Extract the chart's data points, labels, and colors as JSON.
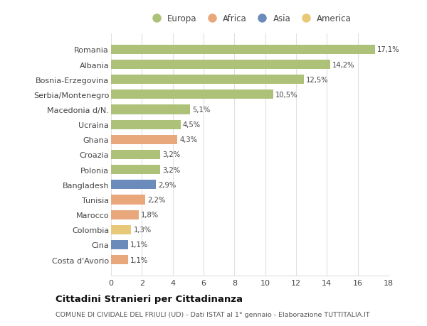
{
  "categories": [
    "Costa d'Avorio",
    "Cina",
    "Colombia",
    "Marocco",
    "Tunisia",
    "Bangladesh",
    "Polonia",
    "Croazia",
    "Ghana",
    "Ucraina",
    "Macedonia d/N.",
    "Serbia/Montenegro",
    "Bosnia-Erzegovina",
    "Albania",
    "Romania"
  ],
  "values": [
    1.1,
    1.1,
    1.3,
    1.8,
    2.2,
    2.9,
    3.2,
    3.2,
    4.3,
    4.5,
    5.1,
    10.5,
    12.5,
    14.2,
    17.1
  ],
  "labels": [
    "1,1%",
    "1,1%",
    "1,3%",
    "1,8%",
    "2,2%",
    "2,9%",
    "3,2%",
    "3,2%",
    "4,3%",
    "4,5%",
    "5,1%",
    "10,5%",
    "12,5%",
    "14,2%",
    "17,1%"
  ],
  "continent": [
    "Africa",
    "Asia",
    "America",
    "Africa",
    "Africa",
    "Asia",
    "Europa",
    "Europa",
    "Africa",
    "Europa",
    "Europa",
    "Europa",
    "Europa",
    "Europa",
    "Europa"
  ],
  "colors": {
    "Europa": "#adc178",
    "Africa": "#e8a87c",
    "Asia": "#6b8cba",
    "America": "#e8c97a"
  },
  "title": "Cittadini Stranieri per Cittadinanza",
  "subtitle": "COMUNE DI CIVIDALE DEL FRIULI (UD) - Dati ISTAT al 1° gennaio - Elaborazione TUTTITALIA.IT",
  "xlim": [
    0,
    18
  ],
  "xticks": [
    0,
    2,
    4,
    6,
    8,
    10,
    12,
    14,
    16,
    18
  ],
  "background_color": "#ffffff",
  "grid_color": "#e0e0e0"
}
